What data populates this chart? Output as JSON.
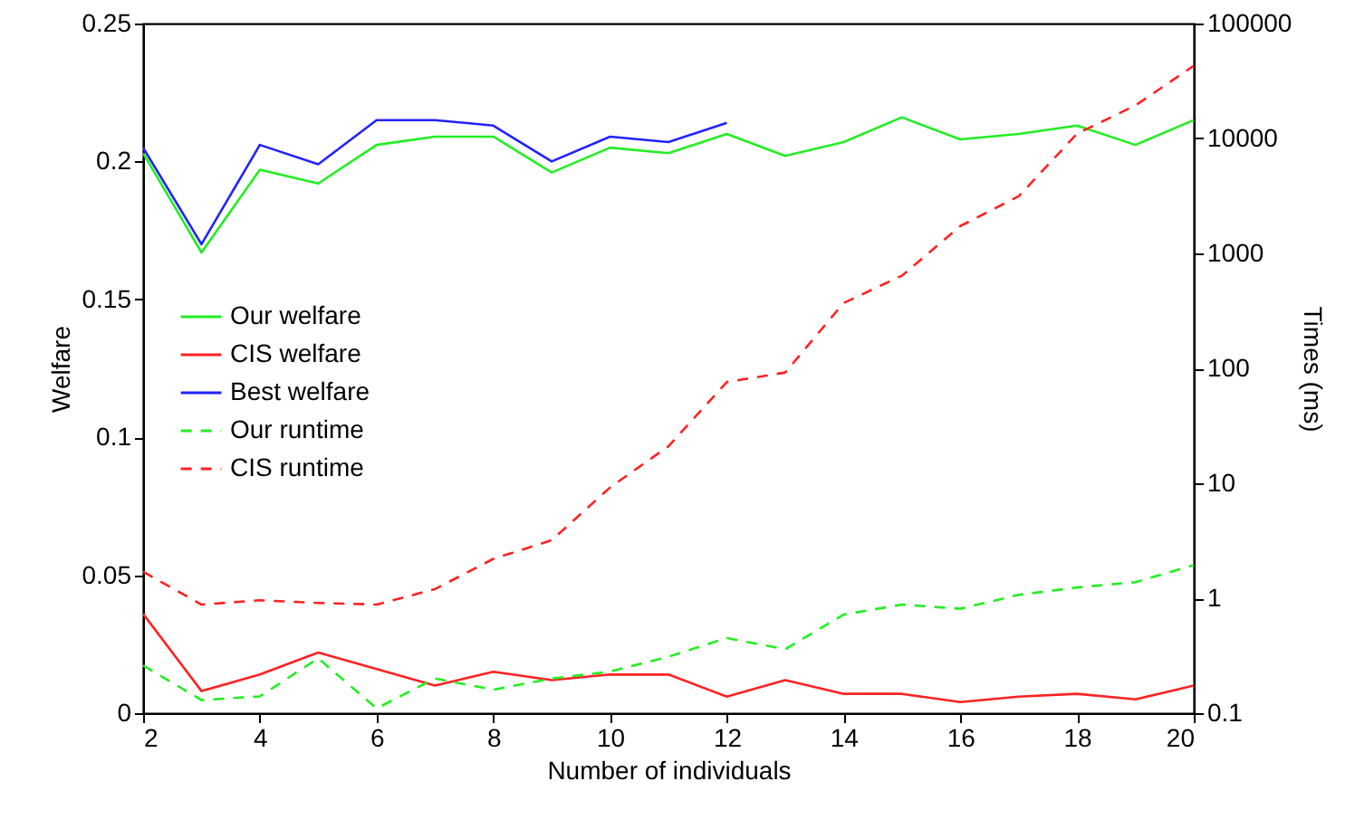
{
  "chart_data": {
    "type": "line",
    "xlabel": "Number of individuals",
    "ylabel": "Welfare",
    "y2label": "Times (ms)",
    "x": [
      2,
      3,
      4,
      5,
      6,
      7,
      8,
      9,
      10,
      11,
      12,
      13,
      14,
      15,
      16,
      17,
      18,
      19,
      20
    ],
    "series": [
      {
        "name": "Our welfare",
        "color": "#22ee22",
        "line_style": "solid",
        "values": [
          0.203,
          0.167,
          0.197,
          0.192,
          0.206,
          0.209,
          0.209,
          0.196,
          0.205,
          0.203,
          0.21,
          0.202,
          0.207,
          0.216,
          0.208,
          0.21,
          0.213,
          0.206,
          0.215
        ]
      },
      {
        "name": "CIS welfare",
        "color": "#ff2222",
        "line_style": "solid",
        "values": [
          0.036,
          0.008,
          0.014,
          0.022,
          0.016,
          0.01,
          0.015,
          0.012,
          0.014,
          0.014,
          0.006,
          0.012,
          0.007,
          0.007,
          0.004,
          0.006,
          0.007,
          0.005,
          0.01
        ]
      },
      {
        "name": "Best welfare",
        "color": "#2222ff",
        "line_style": "solid",
        "values": [
          0.205,
          0.17,
          0.206,
          0.199,
          0.215,
          0.215,
          0.213,
          0.2,
          0.209,
          0.207,
          0.214,
          null,
          null,
          null,
          null,
          null,
          null,
          null,
          null
        ]
      },
      {
        "name": "Our runtime",
        "color": "#22ee22",
        "line_style": "dashed",
        "axis": "y2",
        "values": [
          0.26,
          0.13,
          0.14,
          0.3,
          0.11,
          0.2,
          0.16,
          0.2,
          0.23,
          0.31,
          0.45,
          0.36,
          0.72,
          0.88,
          0.81,
          1.07,
          1.24,
          1.38,
          1.94
        ]
      },
      {
        "name": "CIS runtime",
        "color": "#ff2222",
        "line_style": "dashed",
        "axis": "y2",
        "values": [
          1.7,
          0.88,
          0.96,
          0.91,
          0.88,
          1.2,
          2.2,
          3.2,
          9.2,
          21,
          76,
          92,
          370,
          640,
          1730,
          3140,
          11000,
          19400,
          42900
        ]
      }
    ],
    "xlim": [
      2,
      20
    ],
    "xticks": [
      2,
      4,
      6,
      8,
      10,
      12,
      14,
      16,
      18,
      20
    ],
    "ylim": [
      0,
      0.25
    ],
    "yticks": [
      0,
      0.05,
      0.1,
      0.15,
      0.2,
      0.25
    ],
    "y2lim": [
      0.1,
      100000
    ],
    "y2ticks": [
      0.1,
      1,
      10,
      100,
      1000,
      10000,
      100000
    ],
    "log": "y2",
    "legend": "left",
    "grid": false
  }
}
